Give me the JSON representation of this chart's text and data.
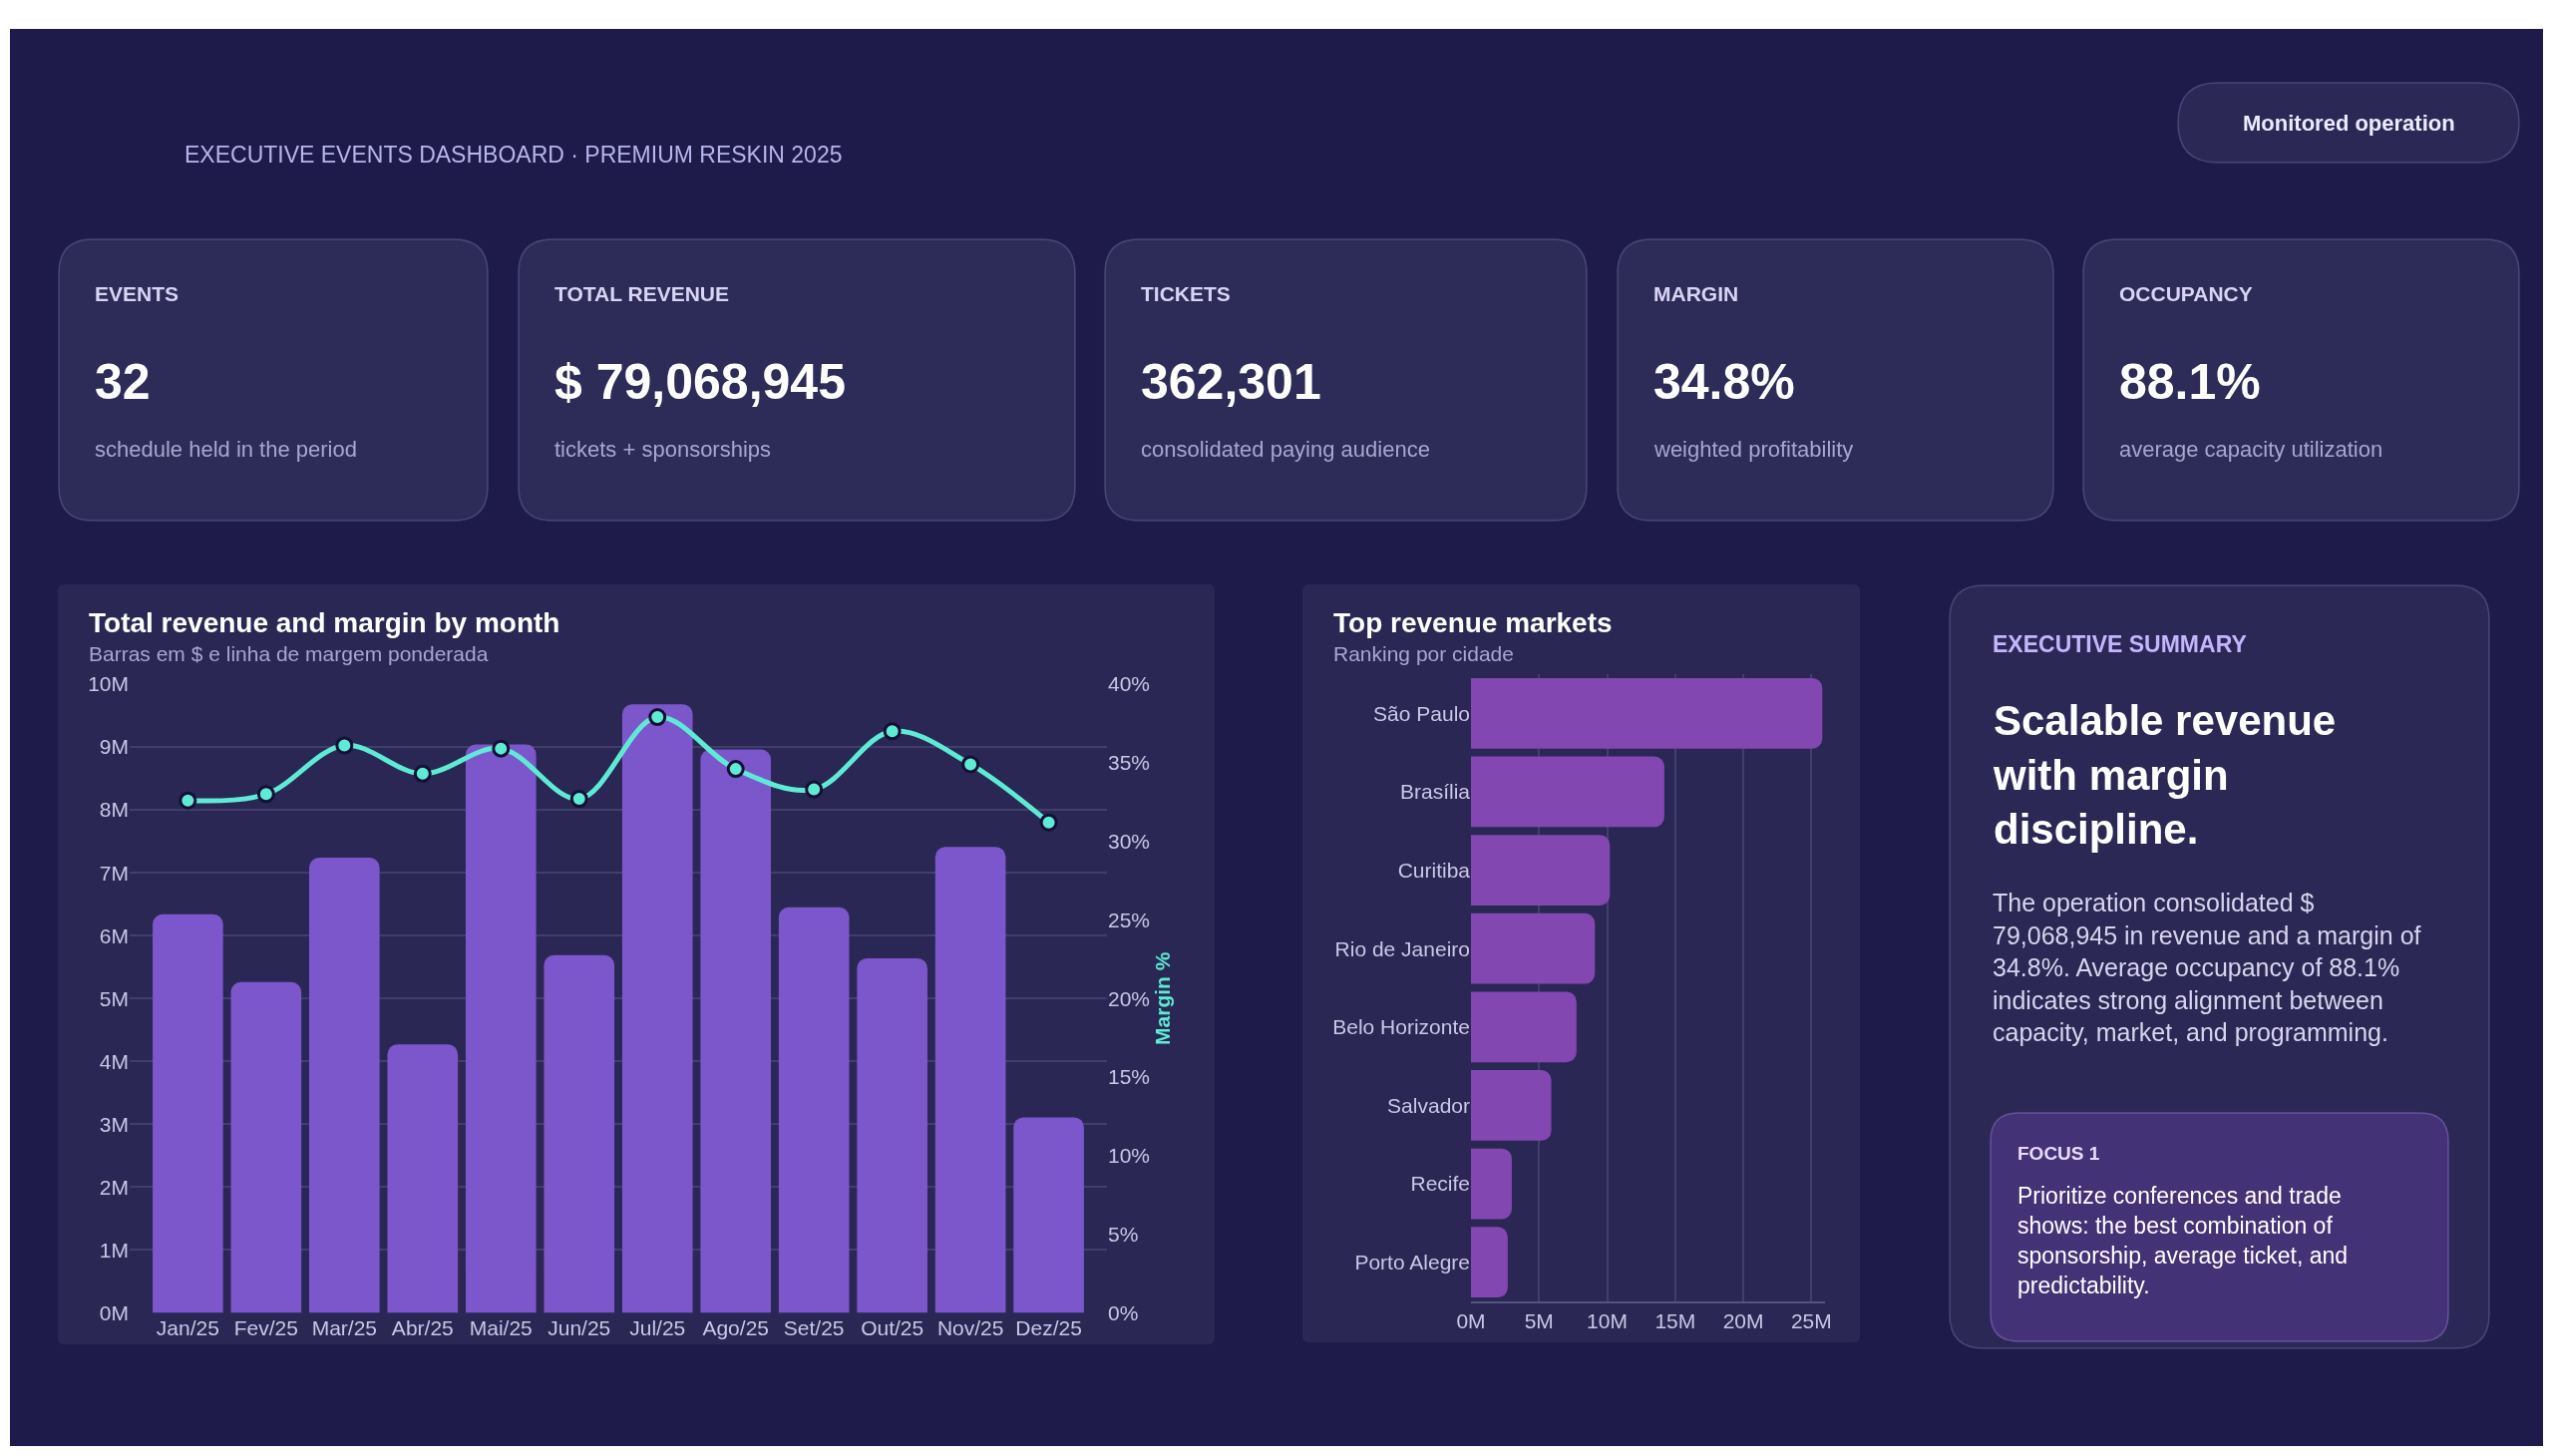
{
  "chart_data": [
    {
      "type": "other",
      "subtitle": "EXECUTIVE EVENTS DASHBOARD · PREMIUM RESKIN 2025",
      "annotations": [
        "Monitored operation"
      ]
    },
    {
      "type": "other",
      "title": "EVENTS",
      "annotations": [
        "32",
        "schedule held in the period"
      ]
    },
    {
      "type": "other",
      "title": "TOTAL REVENUE",
      "annotations": [
        "$ 79,068,945",
        "tickets + sponsorships"
      ]
    },
    {
      "type": "other",
      "title": "TICKETS",
      "annotations": [
        "362,301",
        "consolidated paying audience"
      ]
    },
    {
      "type": "other",
      "title": "MARGIN",
      "annotations": [
        "34.8%",
        "weighted profitability"
      ]
    },
    {
      "type": "other",
      "title": "OCCUPANCY",
      "annotations": [
        "88.1%",
        "average capacity utilization"
      ]
    },
    {
      "type": "bar",
      "title": "Total revenue and margin by month",
      "subtitle": "Barras em $ e linha de margem ponderada",
      "categories": [
        "Jan/25",
        "Fev/25",
        "Mar/25",
        "Abr/25",
        "Mai/25",
        "Jun/25",
        "Jul/25",
        "Ago/25",
        "Set/25",
        "Out/25",
        "Nov/25",
        "Dez/25"
      ],
      "series": [
        {
          "type": "bar",
          "color": "#7c57cc",
          "values": [
            6.34,
            5.26,
            7.24,
            4.27,
            9.04,
            5.69,
            9.68,
            8.96,
            6.45,
            5.64,
            7.41,
            3.11
          ]
        },
        {
          "type": "line",
          "axis": "y2",
          "color": "#5eead4",
          "values": [
            32.6,
            33.0,
            36.1,
            34.3,
            35.9,
            32.7,
            37.9,
            34.6,
            33.3,
            37.0,
            34.9,
            31.2
          ]
        }
      ],
      "y2label": "Margin %",
      "ylim": [
        0,
        10
      ],
      "yticks": [
        {
          "value": 0,
          "label": "0M"
        },
        {
          "value": 1,
          "label": "1M"
        },
        {
          "value": 2,
          "label": "2M"
        },
        {
          "value": 3,
          "label": "3M"
        },
        {
          "value": 4,
          "label": "4M"
        },
        {
          "value": 5,
          "label": "5M"
        },
        {
          "value": 6,
          "label": "6M"
        },
        {
          "value": 7,
          "label": "7M"
        },
        {
          "value": 8,
          "label": "8M"
        },
        {
          "value": 9,
          "label": "9M"
        },
        {
          "value": 10,
          "label": "10M"
        }
      ],
      "y2lim": [
        0,
        40
      ],
      "y2ticks": [
        {
          "value": 0,
          "label": "0%"
        },
        {
          "value": 5,
          "label": "5%"
        },
        {
          "value": 10,
          "label": "10%"
        },
        {
          "value": 15,
          "label": "15%"
        },
        {
          "value": 20,
          "label": "20%"
        },
        {
          "value": 25,
          "label": "25%"
        },
        {
          "value": 30,
          "label": "30%"
        },
        {
          "value": 35,
          "label": "35%"
        },
        {
          "value": 40,
          "label": "40%"
        }
      ],
      "grid": "y",
      "marker": "circle"
    },
    {
      "type": "bar",
      "orientation": "horizontal",
      "title": "Top revenue markets",
      "subtitle": "Ranking por cidade",
      "categories": [
        "São Paulo",
        "Brasília",
        "Curitiba",
        "Rio de Janeiro",
        "Belo Horizonte",
        "Salvador",
        "Recife",
        "Porto Alegre"
      ],
      "values": [
        25.8,
        14.2,
        10.2,
        9.1,
        7.75,
        5.9,
        3.0,
        2.7
      ],
      "color": "#8247b1",
      "xlim": [
        0,
        26
      ],
      "xticks": [
        {
          "value": 0,
          "label": "0M"
        },
        {
          "value": 5,
          "label": "5M"
        },
        {
          "value": 10,
          "label": "10M"
        },
        {
          "value": 15,
          "label": "15M"
        },
        {
          "value": 20,
          "label": "20M"
        },
        {
          "value": 25,
          "label": "25M"
        }
      ],
      "grid": "x"
    },
    {
      "type": "other",
      "title": "Scalable revenue with margin discipline.",
      "annotations": [
        "EXECUTIVE SUMMARY",
        "The operation consolidated $ 79,068,945 in revenue and a margin of 34.8%. Average occupancy of 88.1% indicates strong alignment between capacity, market, and programming.",
        "FOCUS 1",
        "Prioritize conferences and trade shows: the best combination of sponsorship, average ticket, and predictability."
      ]
    }
  ]
}
